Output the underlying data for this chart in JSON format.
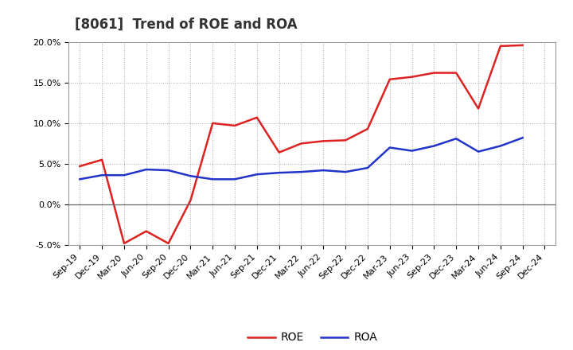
{
  "title": "[8061]  Trend of ROE and ROA",
  "x_labels": [
    "Sep-19",
    "Dec-19",
    "Mar-20",
    "Jun-20",
    "Sep-20",
    "Dec-20",
    "Mar-21",
    "Jun-21",
    "Sep-21",
    "Dec-21",
    "Mar-22",
    "Jun-22",
    "Sep-22",
    "Dec-22",
    "Mar-23",
    "Jun-23",
    "Sep-23",
    "Dec-23",
    "Mar-24",
    "Jun-24",
    "Sep-24",
    "Dec-24"
  ],
  "roe": [
    4.7,
    5.5,
    -4.8,
    -3.3,
    -4.8,
    0.5,
    10.0,
    9.7,
    10.7,
    6.4,
    7.5,
    7.8,
    7.9,
    9.3,
    15.4,
    15.7,
    16.2,
    16.2,
    11.8,
    19.5,
    19.6,
    null
  ],
  "roa": [
    3.1,
    3.6,
    3.6,
    4.3,
    4.2,
    3.5,
    3.1,
    3.1,
    3.7,
    3.9,
    4.0,
    4.2,
    4.0,
    4.5,
    7.0,
    6.6,
    7.2,
    8.1,
    6.5,
    7.2,
    8.2,
    null
  ],
  "ylim": [
    -5.0,
    20.0
  ],
  "yticks": [
    -5.0,
    0.0,
    5.0,
    10.0,
    15.0,
    20.0
  ],
  "roe_color": "#dd2222",
  "roa_color": "#2233cc",
  "background_color": "#ffffff",
  "grid_color": "#aaaaaa",
  "zero_line_color": "#666666",
  "title_fontsize": 12,
  "tick_fontsize": 8,
  "legend_fontsize": 10
}
